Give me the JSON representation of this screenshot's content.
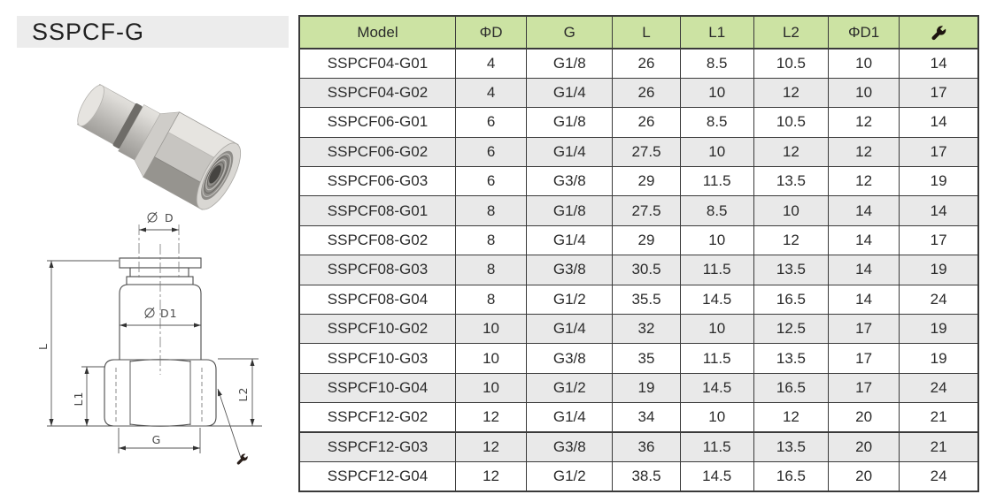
{
  "title": "SSPCF-G",
  "table": {
    "headers": [
      "Model",
      "ΦD",
      "G",
      "L",
      "L1",
      "L2",
      "ΦD1"
    ],
    "wrench_column_icon": "wrench-icon",
    "rows": [
      [
        "SSPCF04-G01",
        "4",
        "G1/8",
        "26",
        "8.5",
        "10.5",
        "10",
        "14"
      ],
      [
        "SSPCF04-G02",
        "4",
        "G1/4",
        "26",
        "10",
        "12",
        "10",
        "17"
      ],
      [
        "SSPCF06-G01",
        "6",
        "G1/8",
        "26",
        "8.5",
        "10.5",
        "12",
        "14"
      ],
      [
        "SSPCF06-G02",
        "6",
        "G1/4",
        "27.5",
        "10",
        "12",
        "12",
        "17"
      ],
      [
        "SSPCF06-G03",
        "6",
        "G3/8",
        "29",
        "11.5",
        "13.5",
        "12",
        "19"
      ],
      [
        "SSPCF08-G01",
        "8",
        "G1/8",
        "27.5",
        "8.5",
        "10",
        "14",
        "14"
      ],
      [
        "SSPCF08-G02",
        "8",
        "G1/4",
        "29",
        "10",
        "12",
        "14",
        "17"
      ],
      [
        "SSPCF08-G03",
        "8",
        "G3/8",
        "30.5",
        "11.5",
        "13.5",
        "14",
        "19"
      ],
      [
        "SSPCF08-G04",
        "8",
        "G1/2",
        "35.5",
        "14.5",
        "16.5",
        "14",
        "24"
      ],
      [
        "SSPCF10-G02",
        "10",
        "G1/4",
        "32",
        "10",
        "12.5",
        "17",
        "19"
      ],
      [
        "SSPCF10-G03",
        "10",
        "G3/8",
        "35",
        "11.5",
        "13.5",
        "17",
        "19"
      ],
      [
        "SSPCF10-G04",
        "10",
        "G1/2",
        "19",
        "14.5",
        "16.5",
        "17",
        "24"
      ],
      [
        "SSPCF12-G02",
        "12",
        "G1/4",
        "34",
        "10",
        "12",
        "20",
        "21"
      ],
      [
        "SSPCF12-G03",
        "12",
        "G3/8",
        "36",
        "11.5",
        "13.5",
        "20",
        "21"
      ],
      [
        "SSPCF12-G04",
        "12",
        "G1/2",
        "38.5",
        "14.5",
        "16.5",
        "20",
        "24"
      ]
    ]
  },
  "diagram": {
    "labels": {
      "d": "D",
      "d1": "D1",
      "l": "L",
      "l1": "L1",
      "l2": "L2",
      "g": "G"
    }
  },
  "colors": {
    "header_green": "#cce3a3",
    "row_alt_gray": "#e9e9e9",
    "grid_border": "#3a3a3a",
    "title_bar_gray": "#ececec"
  }
}
